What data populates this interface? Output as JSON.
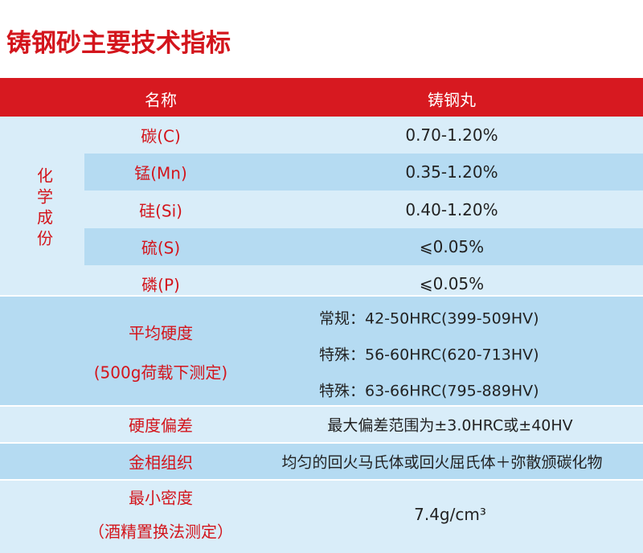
{
  "title": "铸钢砂主要技术指标",
  "table": {
    "header": [
      "名称",
      "铸钢丸"
    ],
    "chemical": {
      "label": "化学成份",
      "rows": [
        [
          "碳(C)",
          "0.70-1.20%"
        ],
        [
          "锰(Mn)",
          "0.35-1.20%"
        ],
        [
          "硅(Si)",
          "0.40-1.20%"
        ],
        [
          "硫(S)",
          "⩽0.05%"
        ],
        [
          "磷(P)",
          "⩽0.05%"
        ]
      ]
    },
    "hardness": {
      "label": [
        "平均硬度",
        "(500g荷载下测定)"
      ],
      "values": [
        "常规：42-50HRC(399-509HV)",
        "特殊：56-60HRC(620-713HV)",
        "特殊：63-66HRC(795-889HV)"
      ]
    },
    "rows": [
      [
        "硬度偏差",
        "最大偏差范围为±3.0HRC或±40HV"
      ],
      [
        "金相组织",
        "均匀的回火马氏体或回火屈氏体＋弥散颁碳化物"
      ]
    ],
    "density": {
      "label": [
        "最小密度",
        "（酒精置换法测定）"
      ],
      "value": "7.4g/cm³"
    }
  }
}
